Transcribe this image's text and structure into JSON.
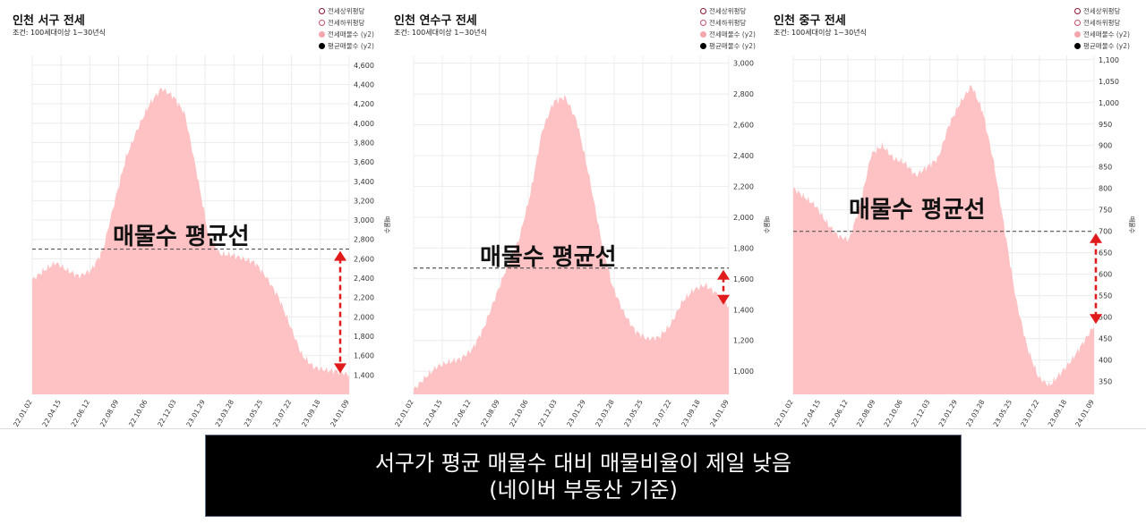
{
  "legend": {
    "items": [
      {
        "label": "전세상위평당",
        "style": "ring",
        "color": "#8a1538"
      },
      {
        "label": "전세하위평당",
        "style": "ring",
        "color": "#c8506a"
      },
      {
        "label": "전세매물수 (y2)",
        "style": "fill",
        "color": "#f4a6ad"
      },
      {
        "label": "평균매물수 (y2)",
        "style": "fill",
        "color": "#000000"
      }
    ]
  },
  "annotation_label": "매물수 평균선",
  "caption": {
    "line1": "서구가 평균 매물수 대비 매물비율이 제일 낮음",
    "line2": "(네이버 부동산 기준)"
  },
  "colors": {
    "area": "#ffc2c4",
    "arrow": "#e11b1b",
    "avgline": "#555555"
  },
  "chart_data": [
    {
      "type": "area",
      "title": "인천 서구 전세",
      "subtitle": "조건: 100세대이상 1~30년식",
      "y2label": "매물수",
      "x_ticks": [
        "22.01.02",
        "22.04.15",
        "22.06.12",
        "22.08.09",
        "22.10.06",
        "22.12.03",
        "23.01.29",
        "23.03.28",
        "23.05.25",
        "23.07.22",
        "23.09.18",
        "24.01.09"
      ],
      "y_ticks": [
        1400,
        1600,
        1800,
        2000,
        2200,
        2400,
        2600,
        2800,
        3000,
        3200,
        3400,
        3600,
        3800,
        4000,
        4200,
        4400,
        4600
      ],
      "ylim": [
        1200,
        4700
      ],
      "average": 2700,
      "series": [
        {
          "values": [
            2380,
            2480,
            2560,
            2480,
            2420,
            2480,
            2680,
            3180,
            3650,
            3950,
            4200,
            4360,
            4280,
            4100,
            3500,
            2850,
            2650,
            2640,
            2600,
            2560,
            2400,
            2200,
            1900,
            1600,
            1480,
            1450,
            1440,
            1400
          ]
        }
      ]
    },
    {
      "type": "area",
      "title": "인천 연수구 전세",
      "subtitle": "조건: 100세대이상 1~30년식",
      "y2label": "매물수",
      "x_ticks": [
        "22.01.02",
        "22.04.15",
        "22.06.12",
        "22.08.09",
        "22.10.06",
        "22.12.03",
        "23.01.29",
        "23.03.28",
        "23.05.25",
        "23.07.22",
        "23.09.18",
        "24.01.09"
      ],
      "y_ticks": [
        1000,
        1200,
        1400,
        1600,
        1800,
        2000,
        2200,
        2400,
        2600,
        2800,
        3000
      ],
      "ylim": [
        850,
        3050
      ],
      "average": 1670,
      "series": [
        {
          "values": [
            880,
            960,
            1030,
            1060,
            1080,
            1140,
            1280,
            1480,
            1680,
            1850,
            2150,
            2560,
            2750,
            2780,
            2620,
            2280,
            1880,
            1560,
            1380,
            1260,
            1210,
            1220,
            1300,
            1450,
            1530,
            1560,
            1500,
            1420
          ]
        }
      ]
    },
    {
      "type": "area",
      "title": "인천 중구 전세",
      "subtitle": "조건: 100세대이상 1~30년식",
      "y2label": "매물수",
      "x_ticks": [
        "22.01.02",
        "22.04.15",
        "22.06.12",
        "22.08.09",
        "22.10.06",
        "22.12.03",
        "23.01.29",
        "23.03.28",
        "23.05.25",
        "23.07.22",
        "23.09.18",
        "24.01.09"
      ],
      "y_ticks": [
        350,
        400,
        450,
        500,
        550,
        600,
        650,
        700,
        750,
        800,
        850,
        900,
        950,
        1000,
        1050,
        1100
      ],
      "ylim": [
        320,
        1110
      ],
      "average": 700,
      "series": [
        {
          "values": [
            800,
            780,
            760,
            720,
            690,
            680,
            760,
            880,
            900,
            870,
            860,
            830,
            850,
            870,
            950,
            1000,
            1040,
            980,
            860,
            700,
            540,
            430,
            360,
            340,
            370,
            400,
            440,
            480
          ]
        }
      ]
    }
  ]
}
